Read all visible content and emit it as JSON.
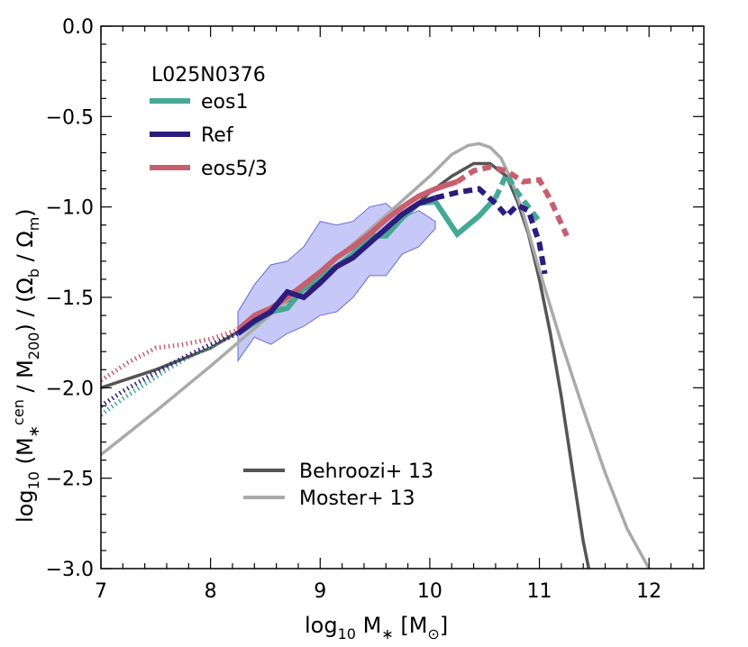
{
  "chart_data": {
    "type": "line",
    "xlabel": "log₁₀ M∗ [M⊙]",
    "ylabel": "log₁₀ (M∗ᶜᵉⁿ / M₂₀₀) / (Ωb / Ωm)",
    "xlim": [
      7,
      12.5
    ],
    "ylim": [
      -3.0,
      0.0
    ],
    "xticks": [
      "7",
      "8",
      "9",
      "10",
      "11",
      "12"
    ],
    "xtick_values": [
      7,
      8,
      9,
      10,
      11,
      12
    ],
    "yticks": [
      "0.0",
      "−0.5",
      "−1.0",
      "−1.5",
      "−2.0",
      "−2.5",
      "−3.0"
    ],
    "ytick_values": [
      0.0,
      -0.5,
      -1.0,
      -1.5,
      -2.0,
      -2.5,
      -3.0
    ],
    "grid": false,
    "legend_title": "L025N0376",
    "colors": {
      "eos1": "#45a895",
      "Ref": "#2d1c7e",
      "eos5/3": "#c85f6e",
      "Behroozi": "#555555",
      "Moster": "#aaaaaa",
      "band_fill": "#c6c8f7",
      "band_edge": "#6a6ad8"
    },
    "band": {
      "x": [
        8.25,
        8.4,
        8.55,
        8.7,
        8.85,
        9.0,
        9.15,
        9.3,
        9.45,
        9.6,
        9.75,
        9.9,
        10.05
      ],
      "upper": [
        -1.58,
        -1.43,
        -1.32,
        -1.3,
        -1.22,
        -1.08,
        -1.1,
        -1.08,
        -1.0,
        -0.98,
        -1.06,
        -1.02,
        -1.08
      ],
      "lower": [
        -1.85,
        -1.72,
        -1.76,
        -1.7,
        -1.66,
        -1.6,
        -1.58,
        -1.5,
        -1.38,
        -1.38,
        -1.26,
        -1.22,
        -1.12
      ]
    },
    "series": [
      {
        "name": "eos1",
        "dotted": {
          "x": [
            7.0,
            7.2,
            7.4,
            7.6,
            7.8,
            8.0,
            8.25
          ],
          "y": [
            -2.15,
            -2.06,
            -1.98,
            -1.9,
            -1.83,
            -1.77,
            -1.7
          ]
        },
        "solid": {
          "x": [
            8.25,
            8.4,
            8.55,
            8.7,
            8.85,
            9.0,
            9.15,
            9.3,
            9.45,
            9.6,
            9.75,
            9.9,
            10.05,
            10.25,
            10.45,
            10.6
          ],
          "y": [
            -1.7,
            -1.64,
            -1.58,
            -1.56,
            -1.45,
            -1.38,
            -1.33,
            -1.26,
            -1.16,
            -1.16,
            -1.06,
            -0.98,
            -0.97,
            -1.15,
            -1.05,
            -0.95
          ]
        },
        "dashed": {
          "x": [
            10.6,
            10.7,
            10.8,
            10.9,
            11.0
          ],
          "y": [
            -0.95,
            -0.82,
            -0.92,
            -1.0,
            -1.08
          ]
        }
      },
      {
        "name": "Ref",
        "dotted": {
          "x": [
            7.0,
            7.2,
            7.4,
            7.6,
            7.8,
            8.0,
            8.25
          ],
          "y": [
            -2.1,
            -2.02,
            -1.95,
            -1.88,
            -1.82,
            -1.76,
            -1.7
          ]
        },
        "solid": {
          "x": [
            8.25,
            8.4,
            8.55,
            8.7,
            8.85,
            9.0,
            9.15,
            9.3,
            9.45,
            9.6,
            9.75,
            9.9,
            10.05
          ],
          "y": [
            -1.7,
            -1.63,
            -1.58,
            -1.47,
            -1.5,
            -1.42,
            -1.33,
            -1.28,
            -1.2,
            -1.12,
            -1.04,
            -0.98,
            -0.95
          ]
        },
        "dashed": {
          "x": [
            10.05,
            10.25,
            10.45,
            10.6,
            10.7,
            10.8,
            10.9,
            11.0,
            11.05
          ],
          "y": [
            -0.95,
            -0.92,
            -0.9,
            -0.98,
            -1.05,
            -0.99,
            -1.02,
            -1.2,
            -1.37
          ]
        }
      },
      {
        "name": "eos5/3",
        "dotted": {
          "x": [
            7.0,
            7.25,
            7.5,
            7.75,
            8.0,
            8.25
          ],
          "y": [
            -1.96,
            -1.86,
            -1.78,
            -1.76,
            -1.73,
            -1.68
          ]
        },
        "solid": {
          "x": [
            8.25,
            8.4,
            8.55,
            8.7,
            8.85,
            9.0,
            9.15,
            9.3,
            9.45,
            9.6,
            9.75,
            9.9,
            10.05,
            10.25
          ],
          "y": [
            -1.68,
            -1.6,
            -1.56,
            -1.5,
            -1.43,
            -1.36,
            -1.28,
            -1.22,
            -1.15,
            -1.07,
            -1.0,
            -0.94,
            -0.9,
            -0.86
          ]
        },
        "dashed": {
          "x": [
            10.25,
            10.4,
            10.55,
            10.7,
            10.85,
            11.0,
            11.1,
            11.25
          ],
          "y": [
            -0.86,
            -0.8,
            -0.78,
            -0.8,
            -0.86,
            -0.85,
            -0.96,
            -1.16
          ]
        }
      },
      {
        "name": "Behroozi+ 13",
        "x": [
          7.0,
          7.5,
          8.0,
          8.5,
          9.0,
          9.5,
          9.8,
          10.0,
          10.2,
          10.4,
          10.55,
          10.7,
          10.8,
          10.9,
          11.0,
          11.1,
          11.2,
          11.3,
          11.4,
          11.45
        ],
        "y": [
          -2.0,
          -1.9,
          -1.78,
          -1.6,
          -1.4,
          -1.18,
          -1.03,
          -0.92,
          -0.83,
          -0.76,
          -0.76,
          -0.83,
          -0.97,
          -1.15,
          -1.4,
          -1.7,
          -2.05,
          -2.45,
          -2.85,
          -3.0
        ]
      },
      {
        "name": "Moster+ 13",
        "x": [
          7.0,
          7.5,
          8.0,
          8.5,
          9.0,
          9.5,
          10.0,
          10.2,
          10.35,
          10.45,
          10.55,
          10.65,
          10.75,
          10.85,
          11.0,
          11.2,
          11.4,
          11.6,
          11.8,
          12.0
        ],
        "y": [
          -2.37,
          -2.13,
          -1.88,
          -1.62,
          -1.36,
          -1.1,
          -0.83,
          -0.71,
          -0.66,
          -0.65,
          -0.67,
          -0.73,
          -0.86,
          -1.03,
          -1.35,
          -1.75,
          -2.12,
          -2.47,
          -2.78,
          -3.0
        ]
      }
    ],
    "legend_entries": [
      "eos1",
      "Ref",
      "eos5/3"
    ],
    "legend2_entries": [
      "Behroozi+ 13",
      "Moster+ 13"
    ]
  }
}
